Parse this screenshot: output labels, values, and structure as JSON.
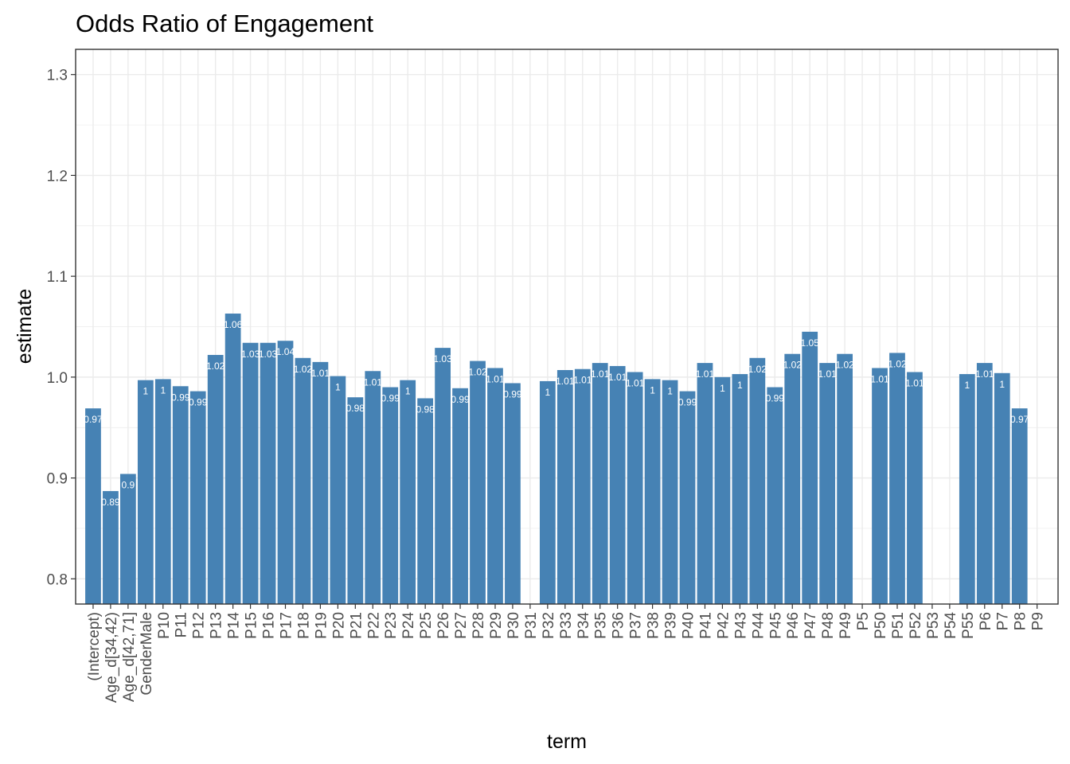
{
  "chart_data": {
    "type": "bar",
    "title": "Odds Ratio of Engagement",
    "xlabel": "term",
    "ylabel": "estimate",
    "ylim": [
      0.775,
      1.325
    ],
    "yticks": [
      0.8,
      0.9,
      1.0,
      1.1,
      1.2,
      1.3
    ],
    "ytick_labels": [
      "0.8",
      "0.9",
      "1.0",
      "1.1",
      "1.2",
      "1.3"
    ],
    "grid": true,
    "bar_color": "#4682b4",
    "categories": [
      "(Intercept)",
      "Age_d[34,42)",
      "Age_d[42,71]",
      "GenderMale",
      "P10",
      "P11",
      "P12",
      "P13",
      "P14",
      "P15",
      "P16",
      "P17",
      "P18",
      "P19",
      "P20",
      "P21",
      "P22",
      "P23",
      "P24",
      "P25",
      "P26",
      "P27",
      "P28",
      "P29",
      "P30",
      "P31",
      "P32",
      "P33",
      "P34",
      "P35",
      "P36",
      "P37",
      "P38",
      "P39",
      "P40",
      "P41",
      "P42",
      "P43",
      "P44",
      "P45",
      "P46",
      "P47",
      "P48",
      "P49",
      "P5",
      "P50",
      "P51",
      "P52",
      "P53",
      "P54",
      "P55",
      "P6",
      "P7",
      "P8",
      "P9"
    ],
    "values": [
      0.969,
      0.887,
      0.904,
      0.997,
      0.998,
      0.991,
      0.986,
      1.022,
      1.063,
      1.034,
      1.034,
      1.036,
      1.019,
      1.015,
      1.001,
      0.98,
      1.006,
      0.99,
      0.997,
      0.979,
      1.029,
      0.989,
      1.016,
      1.009,
      0.994,
      null,
      0.996,
      1.007,
      1.008,
      1.014,
      1.011,
      1.005,
      0.998,
      0.997,
      0.986,
      1.014,
      1.0,
      1.003,
      1.019,
      0.99,
      1.023,
      1.045,
      1.014,
      1.023,
      null,
      1.009,
      1.024,
      1.005,
      null,
      null,
      1.003,
      1.014,
      1.004,
      0.969,
      null
    ],
    "labels": [
      "0.97",
      "0.89",
      "0.9",
      "1",
      "1",
      "0.99",
      "0.99",
      "1.02",
      "1.06",
      "1.03",
      "1.03",
      "1.04",
      "1.02",
      "1.01",
      "1",
      "0.98",
      "1.01",
      "0.99",
      "1",
      "0.98",
      "1.03",
      "0.99",
      "1.02",
      "1.01",
      "0.99",
      "",
      "1",
      "1.01",
      "1.01",
      "1.01",
      "1.01",
      "1.01",
      "1",
      "1",
      "0.99",
      "1.01",
      "1",
      "1",
      "1.02",
      "0.99",
      "1.02",
      "1.05",
      "1.01",
      "1.02",
      "",
      "1.01",
      "1.02",
      "1.01",
      "",
      "",
      "1",
      "1.01",
      "1",
      "0.97",
      ""
    ]
  }
}
